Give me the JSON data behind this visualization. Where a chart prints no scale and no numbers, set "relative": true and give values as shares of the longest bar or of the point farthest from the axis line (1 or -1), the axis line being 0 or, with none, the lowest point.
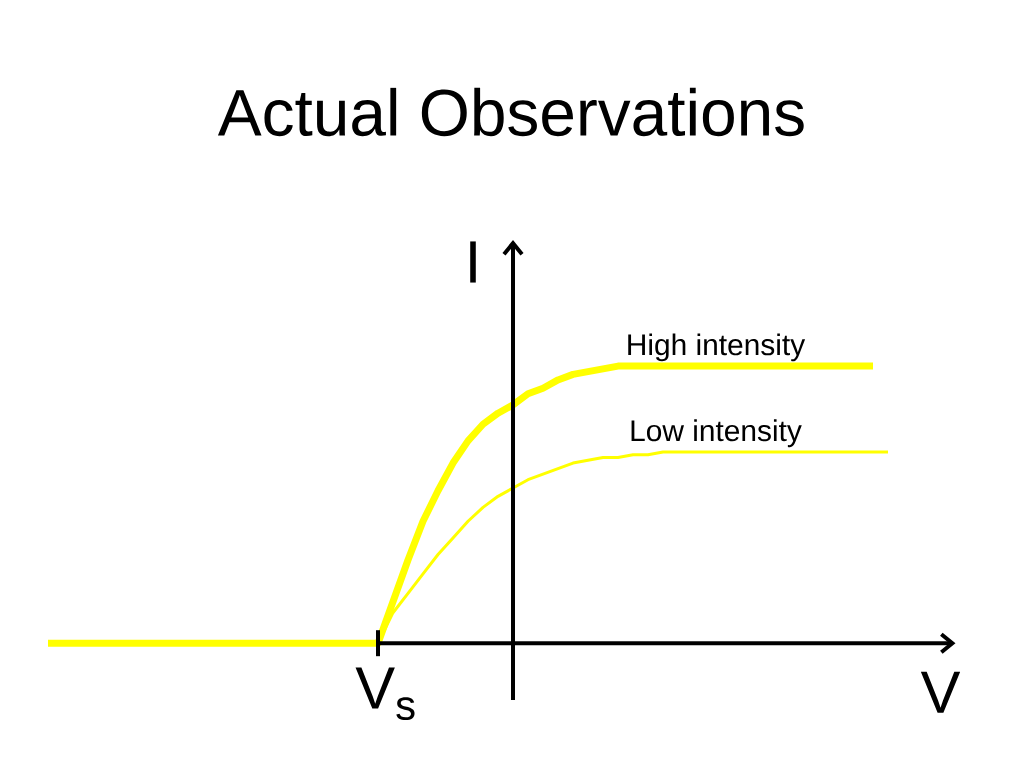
{
  "chart_data": {
    "type": "line",
    "title": "Actual Observations",
    "xlabel": "V",
    "ylabel": "I",
    "relative": true,
    "categories": [
      null,
      null,
      null,
      null,
      null,
      null,
      null,
      null,
      null,
      null,
      null,
      null,
      null,
      null,
      null,
      null,
      null,
      null,
      null,
      null,
      null,
      null,
      null,
      null,
      null,
      null,
      null,
      null,
      null,
      null,
      null,
      null,
      null,
      null,
      null,
      null,
      null,
      null,
      null,
      null,
      null,
      null,
      null,
      null,
      null,
      null,
      null,
      null,
      null,
      null,
      null,
      null,
      null,
      null,
      null,
      null,
      null
    ],
    "annotations": [
      {
        "text": "V$_{s}$",
        "y": 0
      }
    ],
    "series": [
      {
        "name": "High intensity",
        "color": "#ffff00",
        "values": [
          0,
          0,
          0,
          0,
          0,
          0,
          0,
          0,
          0,
          0,
          0,
          0,
          0,
          0,
          0,
          0,
          0,
          0,
          0,
          0,
          0,
          0,
          0,
          0.15,
          0.3,
          0.44,
          0.55,
          0.65,
          0.73,
          0.79,
          0.83,
          0.86,
          0.9,
          0.92,
          0.95,
          0.97,
          0.98,
          0.99,
          1,
          1,
          1,
          1,
          1,
          1,
          1,
          1,
          1,
          1,
          1,
          1,
          1,
          1,
          1,
          1,
          1,
          1,
          null
        ]
      },
      {
        "name": "Low intensity",
        "color": "#ffff00",
        "values": [
          0,
          0,
          0,
          0,
          0,
          0,
          0,
          0,
          0,
          0,
          0,
          0,
          0,
          0,
          0,
          0,
          0,
          0,
          0,
          0,
          0,
          0,
          0,
          0.11,
          0.18,
          0.25,
          0.32,
          0.38,
          0.44,
          0.49,
          0.53,
          0.56,
          0.59,
          0.61,
          0.63,
          0.65,
          0.66,
          0.67,
          0.67,
          0.68,
          0.68,
          0.69,
          0.69,
          0.69,
          0.69,
          0.69,
          0.69,
          0.69,
          0.69,
          0.69,
          0.69,
          0.69,
          0.69,
          0.69,
          0.69,
          0.69,
          0.69
        ]
      }
    ]
  }
}
